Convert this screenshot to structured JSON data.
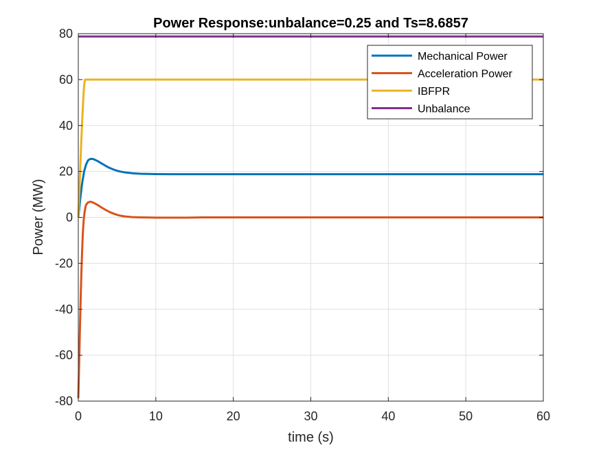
{
  "chart_data": {
    "type": "line",
    "title": "Power Response:unbalance=0.25 and Ts=8.6857",
    "xlabel": "time (s)",
    "ylabel": "Power (MW)",
    "xlim": [
      0,
      60
    ],
    "ylim": [
      -80,
      80
    ],
    "xticks": [
      0,
      10,
      20,
      30,
      40,
      50,
      60
    ],
    "yticks": [
      -80,
      -60,
      -40,
      -20,
      0,
      20,
      40,
      60,
      80
    ],
    "grid": true,
    "legend_position": "top-right",
    "series": [
      {
        "name": "Mechanical Power",
        "color": "#0072BD",
        "x": [
          0,
          0.25,
          0.5,
          0.75,
          1.0,
          1.25,
          1.5,
          1.75,
          2.0,
          2.5,
          3.0,
          3.5,
          4.0,
          4.5,
          5.0,
          5.5,
          6.0,
          7.0,
          8.0,
          9.0,
          10.0,
          12.0,
          14.0,
          16.0,
          20.0,
          30.0,
          40.0,
          50.0,
          60.0
        ],
        "y": [
          0,
          8,
          15,
          20,
          23,
          24.8,
          25.4,
          25.5,
          25.3,
          24.5,
          23.5,
          22.5,
          21.6,
          20.9,
          20.3,
          19.9,
          19.6,
          19.2,
          19.0,
          18.9,
          18.85,
          18.8,
          18.8,
          18.8,
          18.8,
          18.8,
          18.8,
          18.8,
          18.8
        ]
      },
      {
        "name": "Acceleration Power",
        "color": "#D95319",
        "x": [
          0,
          0.1,
          0.2,
          0.3,
          0.4,
          0.5,
          0.6,
          0.7,
          0.8,
          0.9,
          1.0,
          1.25,
          1.5,
          1.75,
          2.0,
          2.5,
          3.0,
          3.5,
          4.0,
          4.5,
          5.0,
          5.5,
          6.0,
          7.0,
          8.0,
          9.0,
          10.0,
          12.0,
          14.0,
          16.0,
          20.0,
          30.0,
          40.0,
          50.0,
          60.0
        ],
        "y": [
          -78.75,
          -65,
          -50,
          -36,
          -24,
          -14,
          -6,
          -1,
          2,
          4,
          5.5,
          6.5,
          6.8,
          6.7,
          6.3,
          5.4,
          4.3,
          3.3,
          2.4,
          1.7,
          1.1,
          0.7,
          0.4,
          0.1,
          0,
          -0.05,
          -0.1,
          -0.1,
          -0.1,
          0,
          0,
          0,
          0,
          0,
          0
        ]
      },
      {
        "name": "IBFPR",
        "color": "#EDB120",
        "x": [
          0,
          0.1,
          0.2,
          0.3,
          0.4,
          0.5,
          0.6,
          0.7,
          0.8,
          0.9,
          1.0,
          60.0
        ],
        "y": [
          0,
          8,
          17,
          26,
          34,
          42,
          49,
          55,
          59,
          60,
          60,
          60
        ]
      },
      {
        "name": "Unbalance",
        "color": "#7E2F8E",
        "x": [
          0,
          60
        ],
        "y": [
          78.75,
          78.75
        ]
      }
    ]
  }
}
